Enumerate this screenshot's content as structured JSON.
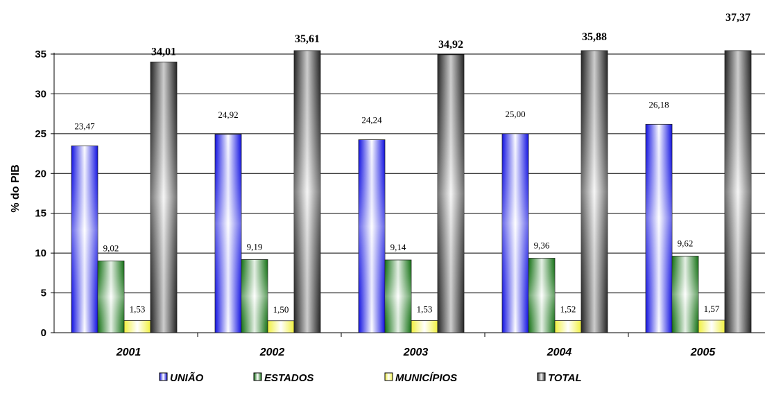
{
  "chart_data": {
    "type": "bar",
    "title": "",
    "xlabel": "",
    "ylabel": "% do PIB",
    "ylim": [
      0,
      35
    ],
    "yticks": [
      0,
      5,
      10,
      15,
      20,
      25,
      30,
      35
    ],
    "grid": "horizontal",
    "legend_position": "bottom",
    "categories": [
      "2001",
      "2002",
      "2003",
      "2004",
      "2005"
    ],
    "series": [
      {
        "name": "UNIÃO",
        "color": "#2a2af0",
        "values": [
          23.47,
          24.92,
          24.24,
          25.0,
          26.18
        ],
        "labels": [
          "23,47",
          "24,92",
          "24,24",
          "25,00",
          "26,18"
        ]
      },
      {
        "name": "ESTADOS",
        "color": "#1e7a1e",
        "values": [
          9.02,
          9.19,
          9.14,
          9.36,
          9.62
        ],
        "labels": [
          "9,02",
          "9,19",
          "9,14",
          "9,36",
          "9,62"
        ]
      },
      {
        "name": "MUNICÍPIOS",
        "color": "#f0f060",
        "values": [
          1.53,
          1.5,
          1.53,
          1.52,
          1.57
        ],
        "labels": [
          "1,53",
          "1,50",
          "1,53",
          "1,52",
          "1,57"
        ]
      },
      {
        "name": "TOTAL",
        "color": "#3a3a3a",
        "values": [
          34.01,
          35.61,
          34.92,
          35.88,
          37.37
        ],
        "labels": [
          "34,01",
          "35,61",
          "34,92",
          "35,88",
          "37,37"
        ]
      }
    ]
  }
}
